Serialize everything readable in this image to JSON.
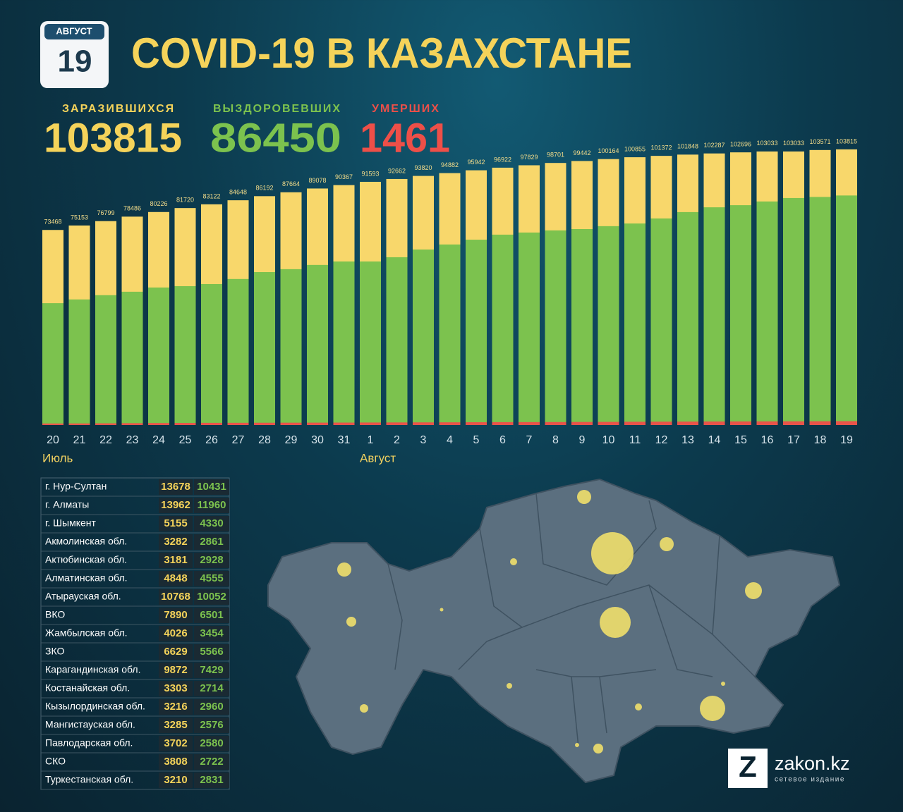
{
  "badge": {
    "month": "АВГУСТ",
    "day": "19"
  },
  "chart_data": {
    "type": "bar",
    "title": "COVID-19 В КАЗАХСТАНЕ",
    "stacking": "overlay",
    "categories": [
      "20",
      "21",
      "22",
      "23",
      "24",
      "25",
      "26",
      "27",
      "28",
      "29",
      "30",
      "31",
      "1",
      "2",
      "3",
      "4",
      "5",
      "6",
      "7",
      "8",
      "9",
      "10",
      "11",
      "12",
      "13",
      "14",
      "15",
      "16",
      "17",
      "18",
      "19"
    ],
    "month_groups": [
      {
        "label": "Июль",
        "first": "20"
      },
      {
        "label": "Август",
        "first": "1"
      }
    ],
    "series": [
      {
        "name": "ЗАРАЗИВШИХСЯ",
        "color": "#f8d76b",
        "values": [
          73468,
          75153,
          76799,
          78486,
          80226,
          81720,
          83122,
          84648,
          86192,
          87664,
          89078,
          90367,
          91593,
          92662,
          93820,
          94882,
          95942,
          96922,
          97829,
          98701,
          99442,
          100164,
          100855,
          101372,
          101848,
          102287,
          102696,
          103033,
          103033,
          103571,
          103815
        ]
      },
      {
        "name": "ВЫЗДОРОВЕВШИХ",
        "color": "#7cc24e",
        "values": [
          45900,
          47300,
          48900,
          50200,
          51800,
          52300,
          53100,
          55000,
          57600,
          58700,
          60300,
          61600,
          61600,
          63200,
          66100,
          68000,
          69800,
          71700,
          72500,
          73300,
          73800,
          74900,
          75900,
          77800,
          80200,
          82000,
          82800,
          84200,
          85500,
          85900,
          86450
        ]
      },
      {
        "name": "УМЕРШИХ",
        "color": "#e8534a",
        "values": [
          585,
          600,
          650,
          700,
          750,
          780,
          820,
          840,
          860,
          880,
          900,
          920,
          950,
          980,
          1000,
          1020,
          1050,
          1080,
          1100,
          1120,
          1150,
          1180,
          1230,
          1270,
          1300,
          1330,
          1360,
          1380,
          1400,
          1430,
          1461
        ]
      }
    ]
  },
  "table": {
    "rows": [
      [
        "г. Нур-Султан",
        13678,
        10431
      ],
      [
        "г. Алматы",
        13962,
        11960
      ],
      [
        "г. Шымкент",
        5155,
        4330
      ],
      [
        "Акмолинская обл.",
        3282,
        2861
      ],
      [
        "Актюбинская обл.",
        3181,
        2928
      ],
      [
        "Алматинская обл.",
        4848,
        4555
      ],
      [
        "Атырауская обл.",
        10768,
        10052
      ],
      [
        "ВКО",
        7890,
        6501
      ],
      [
        "Жамбылская обл.",
        4026,
        3454
      ],
      [
        "ЗКО",
        6629,
        5566
      ],
      [
        "Карагандинская обл.",
        9872,
        7429
      ],
      [
        "Костанайская обл.",
        3303,
        2714
      ],
      [
        "Кызылординская обл.",
        3216,
        2960
      ],
      [
        "Мангистауская обл.",
        3285,
        2576
      ],
      [
        "Павлодарская обл.",
        3702,
        2580
      ],
      [
        "СКО",
        3808,
        2722
      ],
      [
        "Туркестанская обл.",
        3210,
        2831
      ]
    ]
  },
  "logo": {
    "mark": "Z",
    "name": "zakon.kz",
    "tagline": "сетевое издание"
  }
}
